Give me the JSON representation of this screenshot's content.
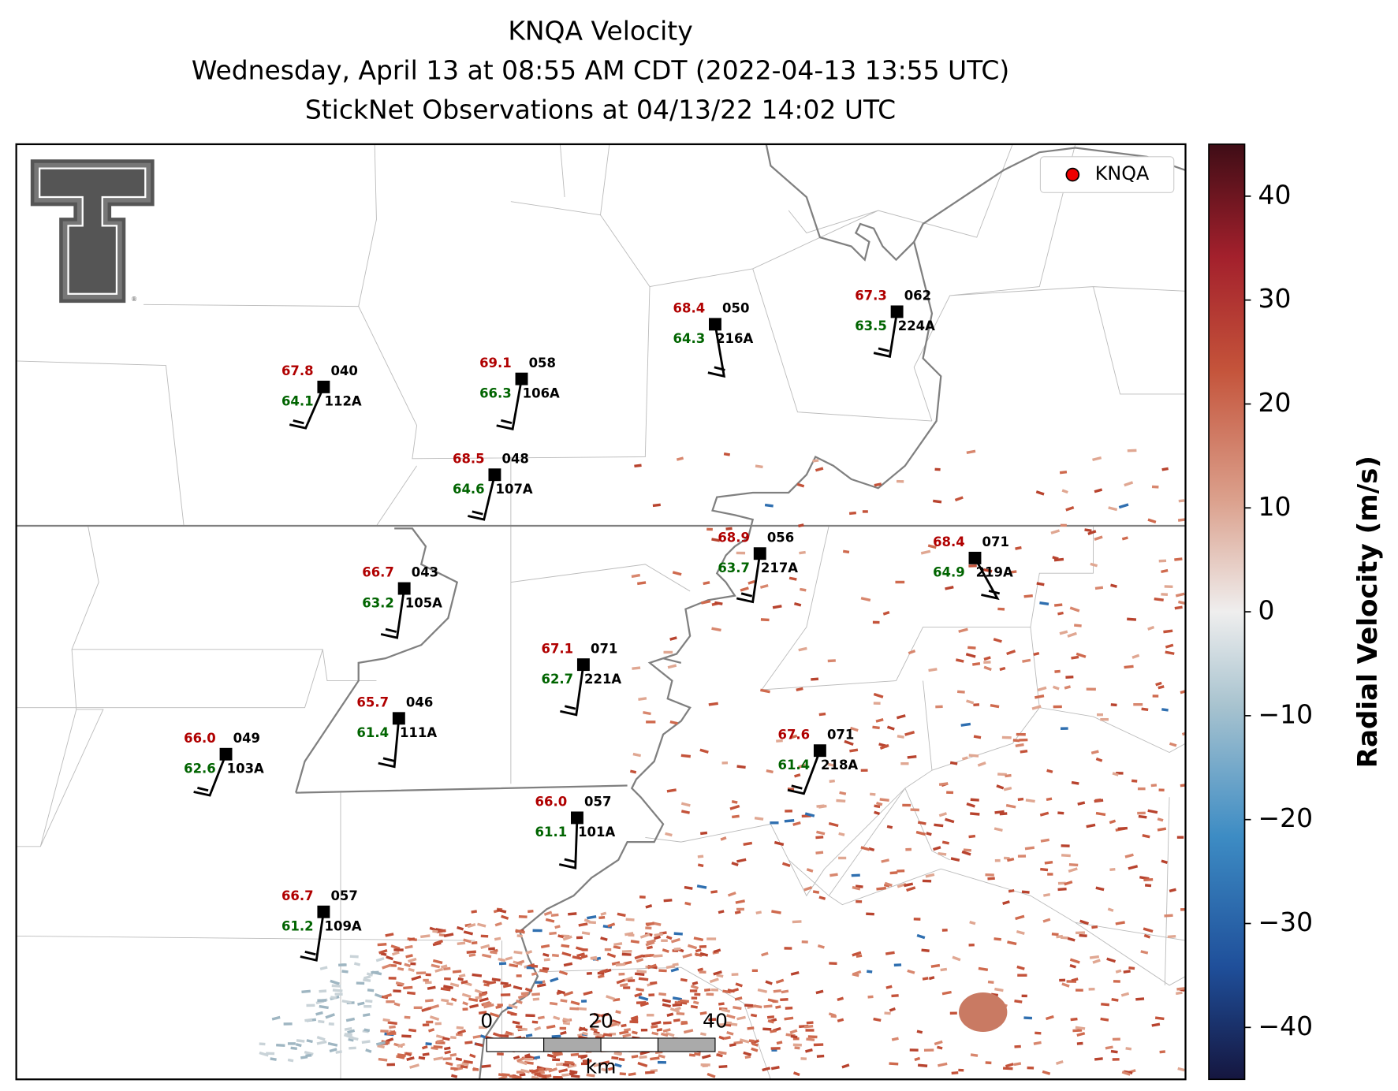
{
  "title": [
    "KNQA Velocity",
    "Wednesday, April 13 at 08:55 AM CDT (2022-04-13 13:55 UTC)",
    "StickNet Observations at 04/13/22 14:02 UTC"
  ],
  "legend": "KNQA",
  "colorbar": {
    "label": "Radial Velocity (m/s)",
    "lim": [
      -45,
      45
    ],
    "ticks": [
      {
        "value": -40,
        "label": "−40"
      },
      {
        "value": -30,
        "label": "−30"
      },
      {
        "value": -20,
        "label": "−20"
      },
      {
        "value": -10,
        "label": "−10"
      },
      0,
      10,
      20,
      30,
      40
    ]
  },
  "scale_bar": {
    "ticks": [
      0,
      20,
      40
    ],
    "unit": "km"
  },
  "stations": [
    {
      "temp": "67.8",
      "dew": "64.1",
      "code": "040",
      "id": "112A"
    },
    {
      "temp": "69.1",
      "dew": "66.3",
      "code": "058",
      "id": "106A"
    },
    {
      "temp": "68.4",
      "dew": "64.3",
      "code": "050",
      "id": "216A"
    },
    {
      "temp": "67.3",
      "dew": "63.5",
      "code": "062",
      "id": "224A"
    },
    {
      "temp": "68.5",
      "dew": "64.6",
      "code": "048",
      "id": "107A"
    },
    {
      "temp": "66.7",
      "dew": "63.2",
      "code": "043",
      "id": "105A"
    },
    {
      "temp": "68.9",
      "dew": "63.7",
      "code": "056",
      "id": "217A"
    },
    {
      "temp": "68.4",
      "dew": "64.9",
      "code": "071",
      "id": "219A"
    },
    {
      "temp": "67.1",
      "dew": "62.7",
      "code": "071",
      "id": "221A"
    },
    {
      "temp": "65.7",
      "dew": "61.4",
      "code": "046",
      "id": "111A"
    },
    {
      "temp": "66.0",
      "dew": "62.6",
      "code": "049",
      "id": "103A"
    },
    {
      "temp": "67.6",
      "dew": "61.4",
      "code": "071",
      "id": "218A"
    },
    {
      "temp": "66.0",
      "dew": "61.1",
      "code": "057",
      "id": "101A"
    },
    {
      "temp": "66.7",
      "dew": "61.2",
      "code": "057",
      "id": "109A"
    }
  ]
}
